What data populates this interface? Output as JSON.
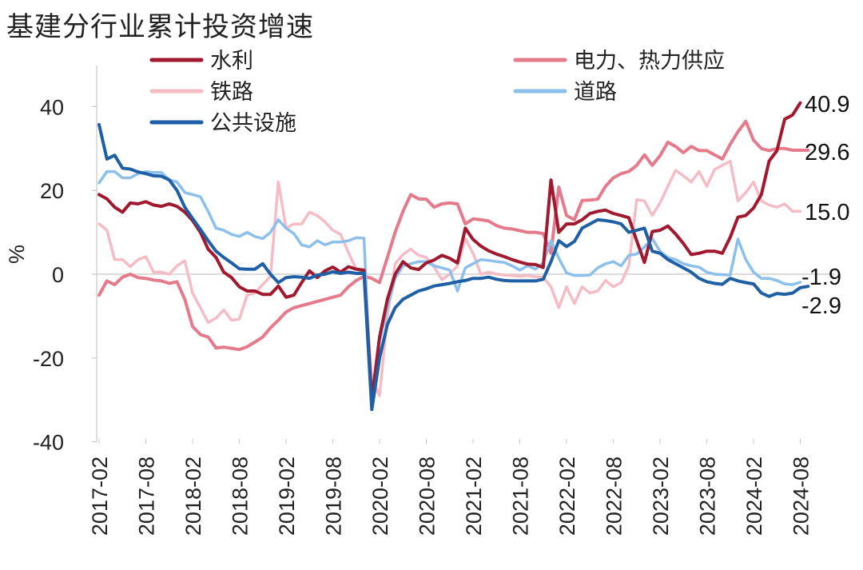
{
  "chart_data": {
    "type": "line",
    "title": "基建分行业累计投资增速",
    "ylabel": "%",
    "xlabel": "",
    "ylim": [
      -40,
      50
    ],
    "yticks": [
      40,
      20,
      0,
      -20,
      -40
    ],
    "ytick_labels": [
      "40",
      "20",
      "0",
      "-20",
      "-40"
    ],
    "x_start": "2017-02",
    "x_tick_labels": [
      "2017-02",
      "2017-08",
      "2018-02",
      "2018-08",
      "2019-02",
      "2019-08",
      "2020-02",
      "2020-08",
      "2021-02",
      "2021-08",
      "2022-02",
      "2022-08",
      "2023-02",
      "2023-08",
      "2024-02",
      "2024-08"
    ],
    "grid": false,
    "legend_position": "top",
    "series": [
      {
        "name": "水利",
        "color": "#A0192E",
        "values": [
          19,
          18,
          16,
          14.8,
          17,
          16.8,
          17.3,
          16.5,
          16.2,
          16.8,
          16.2,
          14.8,
          12.8,
          10,
          6,
          4,
          0.5,
          -0.8,
          -3,
          -4,
          -4,
          -4.8,
          -4.8,
          -2.8,
          -5.5,
          -5,
          -2,
          0.8,
          -0.8,
          0.8,
          1.7,
          0.5,
          1.8,
          1.2,
          1,
          -30,
          -15,
          -6,
          0,
          3,
          1.5,
          1.1,
          2.7,
          3.4,
          4.5,
          3.8,
          2.7,
          11,
          8.3,
          6.7,
          5.6,
          4.8,
          4.2,
          3.5,
          2.9,
          2.4,
          2.3,
          1.6,
          22.5,
          10,
          12,
          12,
          13,
          14.5,
          15,
          15.3,
          14.5,
          14,
          13.5,
          8,
          2.8,
          10.2,
          10.5,
          11.5,
          9.6,
          7.3,
          4.7,
          5,
          5.5,
          5.5,
          5,
          8.8,
          13.6,
          14,
          15.8,
          19,
          27,
          29.5,
          37,
          38,
          40.9
        ]
      },
      {
        "name": "电力、热力供应",
        "color": "#E57A8B",
        "values": [
          -5,
          -1.6,
          -2.5,
          -0.7,
          0,
          -0.8,
          -1,
          -1.4,
          -1.6,
          -2.2,
          -1.8,
          -6,
          -12.5,
          -14.4,
          -15,
          -17.6,
          -17.4,
          -17.7,
          -18,
          -17.3,
          -16.2,
          -15,
          -12.8,
          -11,
          -9,
          -8,
          -7.5,
          -7,
          -6.5,
          -6,
          -5.5,
          -5,
          -3,
          -1.5,
          -0.5,
          -1,
          -2,
          4,
          10,
          15,
          19,
          18,
          17.9,
          16,
          16.8,
          17,
          16.8,
          12,
          13.2,
          13,
          12.7,
          11.6,
          11,
          10.8,
          10.4,
          10,
          10,
          9.7,
          5,
          20.8,
          14,
          13,
          17.6,
          17.7,
          17.9,
          21,
          23,
          24,
          24.5,
          26,
          28.5,
          26,
          28.3,
          31.5,
          30.5,
          29,
          30.5,
          29.5,
          29.5,
          28.5,
          27.5,
          31,
          34,
          36.5,
          32,
          30,
          29.5,
          30,
          30,
          29.6,
          29.6,
          29.6
        ]
      },
      {
        "name": "铁路",
        "color": "#F6BCC5",
        "values": [
          12,
          10.5,
          3.5,
          3.5,
          1.8,
          3.5,
          4.2,
          0.5,
          0.5,
          0,
          2,
          3.2,
          -4.5,
          -8,
          -11.5,
          -10.5,
          -8.5,
          -11,
          -10.7,
          -5,
          -4.5,
          -2.5,
          -0.5,
          22,
          11,
          12,
          12,
          14.8,
          14,
          12.5,
          10.5,
          9.5,
          5.2,
          1.2,
          0.5,
          -25,
          -29,
          -10,
          2.5,
          4.7,
          6,
          4.5,
          4,
          1.7,
          -1.3,
          0,
          2,
          8.5,
          5,
          0,
          0.5,
          0,
          -0.2,
          -0.3,
          -0.5,
          -0.3,
          -0.6,
          -0.7,
          -3,
          -8,
          -3,
          -7,
          -3,
          -4.5,
          -4,
          -1.5,
          -3,
          -2,
          2,
          17.8,
          17.5,
          14,
          17,
          21,
          24.8,
          23.5,
          22,
          24.5,
          21,
          25,
          26,
          27,
          17.5,
          19.5,
          22,
          17.5,
          16.5,
          16,
          16.8,
          15,
          15
        ]
      },
      {
        "name": "道路",
        "color": "#8CC0EC",
        "values": [
          21.8,
          24.5,
          24.5,
          23,
          23,
          24,
          24.5,
          24.3,
          24.3,
          22.5,
          22,
          19.5,
          19,
          18.5,
          15,
          11,
          10.5,
          9.5,
          9,
          10,
          9,
          8.5,
          10,
          13,
          11,
          9.7,
          7,
          6.5,
          8,
          7,
          7.7,
          7.7,
          8,
          8.7,
          8.6,
          -32,
          -16,
          -8,
          -1,
          2,
          2.5,
          3,
          3,
          2,
          1.5,
          1,
          -4,
          1.5,
          2.5,
          3.5,
          3.3,
          3,
          2.8,
          2,
          1,
          2,
          1.2,
          2.7,
          8,
          3.8,
          0.3,
          -0.3,
          -0.3,
          -0.2,
          1.5,
          2.5,
          3,
          2,
          4.5,
          4.8,
          6.5,
          8.5,
          5.5,
          4,
          3.5,
          2.5,
          2,
          1.7,
          0.5,
          0,
          -0.1,
          -0.2,
          8.4,
          3.5,
          0.5,
          -1,
          -1,
          -1.5,
          -2.3,
          -2.5,
          -1.9
        ]
      },
      {
        "name": "公共设施",
        "color": "#1F5FA6",
        "values": [
          35.7,
          27.5,
          28.4,
          25.3,
          25.1,
          24.4,
          24,
          23.5,
          23.4,
          22.5,
          20,
          16,
          13.3,
          10.7,
          8,
          5.5,
          4,
          2.7,
          1.3,
          1.2,
          1.2,
          2.5,
          0,
          -2,
          -0.8,
          -0.6,
          -0.7,
          -1,
          -0.2,
          0,
          0.6,
          0.2,
          0.5,
          0.2,
          0.3,
          -32.3,
          -20,
          -12,
          -8,
          -6,
          -5,
          -4,
          -3.5,
          -2.8,
          -2.5,
          -2.2,
          -1.8,
          -1.5,
          -1,
          -1,
          -0.7,
          -1.2,
          -1.5,
          -1.6,
          -1.6,
          -1.6,
          -1.6,
          -1.2,
          3,
          8,
          6.6,
          7.8,
          11,
          12,
          13,
          12.8,
          12.5,
          12,
          10,
          10.5,
          11,
          5.5,
          5,
          3.5,
          2.5,
          1.5,
          0.5,
          -1,
          -1.8,
          -2.2,
          -2.4,
          -1,
          -1.6,
          -2,
          -2.3,
          -4.5,
          -5.3,
          -4.6,
          -4.8,
          -4.5,
          -3.2,
          -2.9
        ]
      }
    ],
    "end_labels": [
      "40.9",
      "29.6",
      "15.0",
      "-1.9",
      "-2.9"
    ]
  }
}
